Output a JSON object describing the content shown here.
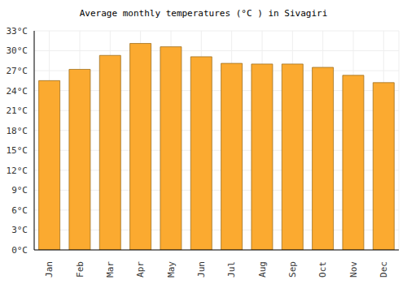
{
  "chart_data": {
    "type": "bar",
    "title": "Average monthly temperatures (°C ) in Sivagiri",
    "categories": [
      "Jan",
      "Feb",
      "Mar",
      "Apr",
      "May",
      "Jun",
      "Jul",
      "Aug",
      "Sep",
      "Oct",
      "Nov",
      "Dec"
    ],
    "values": [
      25.5,
      27.2,
      29.3,
      31.1,
      30.6,
      29.1,
      28.1,
      28.0,
      28.0,
      27.5,
      26.3,
      25.2
    ],
    "color": "#fbaa30",
    "ylim": [
      0,
      33
    ],
    "yticks": [
      {
        "value": 0,
        "label": "0°C"
      },
      {
        "value": 3,
        "label": "3°C"
      },
      {
        "value": 6,
        "label": "6°C"
      },
      {
        "value": 9,
        "label": "9°C"
      },
      {
        "value": 12,
        "label": "12°C"
      },
      {
        "value": 15,
        "label": "15°C"
      },
      {
        "value": 18,
        "label": "18°C"
      },
      {
        "value": 21,
        "label": "21°C"
      },
      {
        "value": 24,
        "label": "24°C"
      },
      {
        "value": 27,
        "label": "27°C"
      },
      {
        "value": 30,
        "label": "30°C"
      },
      {
        "value": 33,
        "label": "33°C"
      }
    ],
    "grid": true
  }
}
